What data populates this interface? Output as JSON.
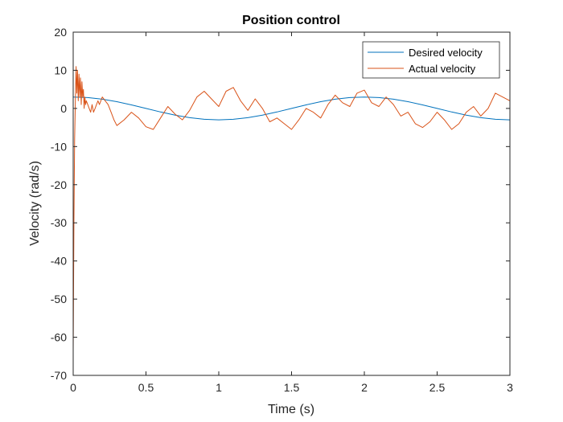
{
  "chart_data": {
    "type": "line",
    "title": "Position control",
    "xlabel": "Time (s)",
    "ylabel": "Velocity (rad/s)",
    "xlim": [
      0,
      3
    ],
    "ylim": [
      -70,
      20
    ],
    "xticks": [
      0,
      0.5,
      1,
      1.5,
      2,
      2.5,
      3
    ],
    "xtick_labels": [
      "0",
      "0.5",
      "1",
      "1.5",
      "2",
      "2.5",
      "3"
    ],
    "yticks": [
      -70,
      -60,
      -50,
      -40,
      -30,
      -20,
      -10,
      0,
      10,
      20
    ],
    "ytick_labels": [
      "-70",
      "-60",
      "-50",
      "-40",
      "-30",
      "-20",
      "-10",
      "0",
      "10",
      "20"
    ],
    "grid": false,
    "legend_position": "top-right",
    "series": [
      {
        "name": "Desired velocity",
        "color": "#0072BD",
        "x": [
          0,
          0.1,
          0.2,
          0.3,
          0.4,
          0.5,
          0.6,
          0.7,
          0.8,
          0.9,
          1.0,
          1.1,
          1.2,
          1.3,
          1.4,
          1.5,
          1.6,
          1.7,
          1.8,
          1.9,
          2.0,
          2.1,
          2.2,
          2.3,
          2.4,
          2.5,
          2.6,
          2.7,
          2.8,
          2.9,
          3.0
        ],
        "y": [
          3.0,
          2.85,
          2.43,
          1.76,
          0.93,
          0.0,
          -0.93,
          -1.76,
          -2.43,
          -2.85,
          -3.0,
          -2.85,
          -2.43,
          -1.76,
          -0.93,
          0.0,
          0.93,
          1.76,
          2.43,
          2.85,
          3.0,
          2.85,
          2.43,
          1.76,
          0.93,
          0.0,
          -0.93,
          -1.76,
          -2.43,
          -2.85,
          -3.0
        ]
      },
      {
        "name": "Actual velocity",
        "color": "#D95319",
        "x": [
          0,
          0.005,
          0.01,
          0.015,
          0.02,
          0.025,
          0.03,
          0.035,
          0.04,
          0.045,
          0.05,
          0.055,
          0.06,
          0.065,
          0.07,
          0.075,
          0.08,
          0.085,
          0.09,
          0.1,
          0.11,
          0.12,
          0.13,
          0.14,
          0.15,
          0.16,
          0.17,
          0.18,
          0.2,
          0.22,
          0.24,
          0.26,
          0.28,
          0.3,
          0.35,
          0.4,
          0.45,
          0.5,
          0.55,
          0.6,
          0.65,
          0.7,
          0.75,
          0.8,
          0.85,
          0.9,
          0.95,
          1.0,
          1.05,
          1.1,
          1.15,
          1.2,
          1.25,
          1.3,
          1.35,
          1.4,
          1.45,
          1.5,
          1.55,
          1.6,
          1.65,
          1.7,
          1.75,
          1.8,
          1.85,
          1.9,
          1.95,
          2.0,
          2.05,
          2.1,
          2.15,
          2.2,
          2.25,
          2.3,
          2.35,
          2.4,
          2.45,
          2.5,
          2.55,
          2.6,
          2.65,
          2.7,
          2.75,
          2.8,
          2.85,
          2.9,
          2.95,
          3.0
        ],
        "y": [
          -64,
          -30,
          -8,
          2,
          11,
          4,
          10,
          2,
          9,
          3,
          8,
          1,
          7,
          3,
          5,
          0,
          3,
          1,
          2,
          1,
          0,
          -1,
          1,
          -1,
          0,
          1,
          2,
          1,
          3,
          2,
          1,
          -1,
          -3,
          -4.5,
          -3,
          -1,
          -2.5,
          -4.8,
          -5.5,
          -2.5,
          0.5,
          -1.5,
          -3,
          -0.5,
          3,
          4.5,
          2.5,
          0.5,
          4.5,
          5.5,
          2,
          -0.5,
          2.5,
          0,
          -3.5,
          -2.5,
          -4,
          -5.5,
          -3,
          0,
          -1,
          -2.5,
          1,
          3.5,
          1.5,
          0.5,
          4,
          4.8,
          1.5,
          0.5,
          3,
          1,
          -2,
          -1,
          -4,
          -5,
          -3.5,
          -1,
          -3,
          -5.5,
          -4,
          -1,
          0.5,
          -2,
          0,
          4,
          3,
          2
        ]
      }
    ]
  }
}
